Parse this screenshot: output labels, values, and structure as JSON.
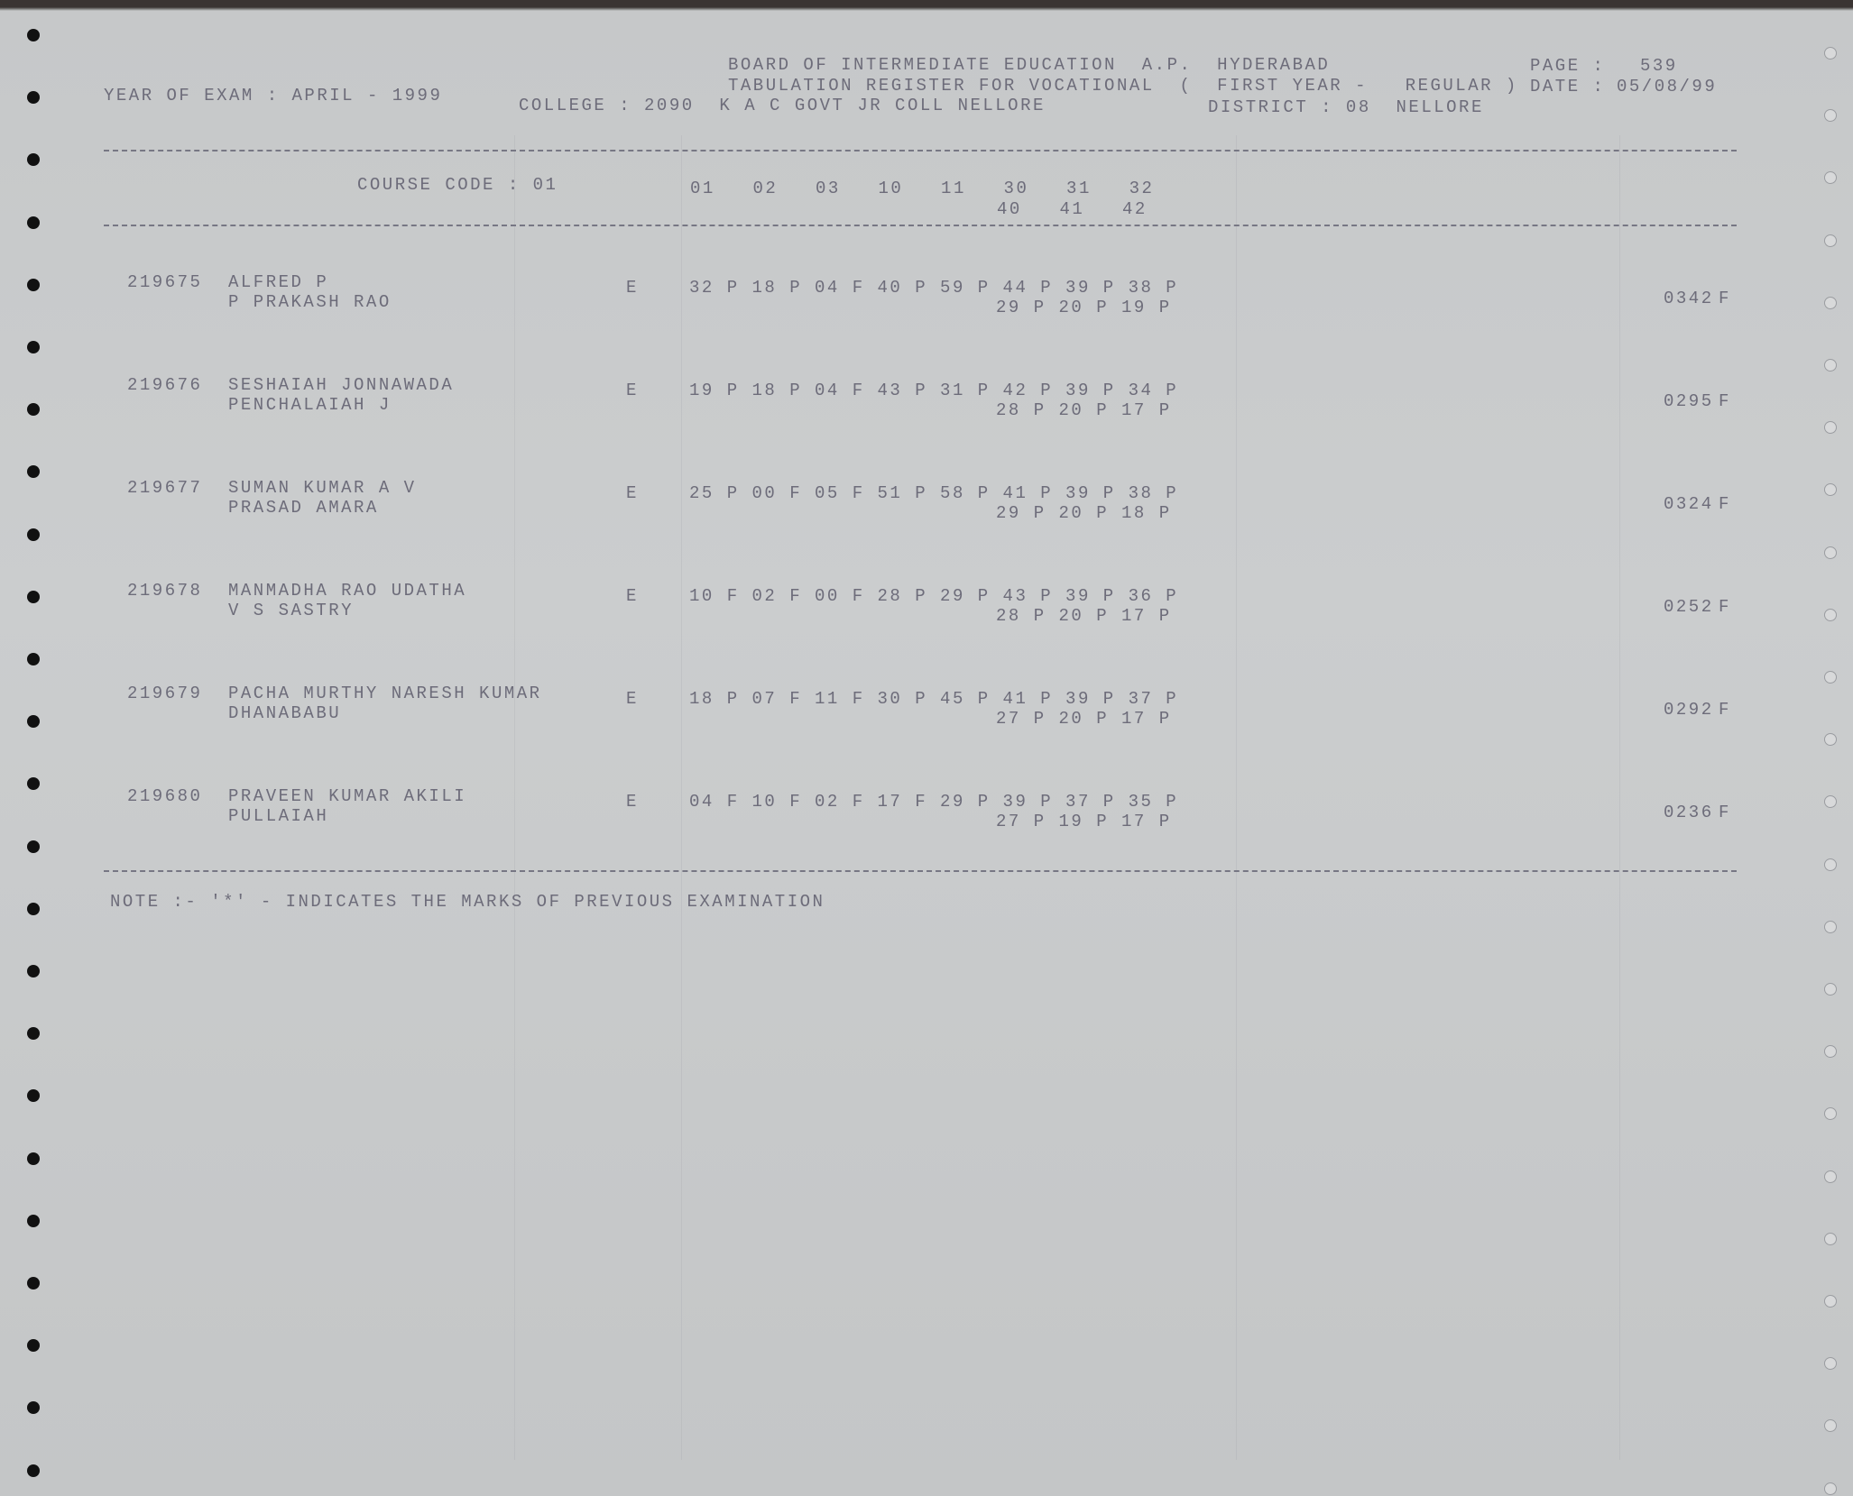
{
  "header": {
    "board": "BOARD OF INTERMEDIATE EDUCATION  A.P.  HYDERABAD",
    "register": "TABULATION REGISTER FOR VOCATIONAL  (  FIRST YEAR -   REGULAR )",
    "page_label": "PAGE :",
    "page_number": "539",
    "date_label": "DATE :",
    "date": "05/08/99",
    "year_of_exam": "YEAR OF EXAM : APRIL - 1999",
    "college": "COLLEGE : 2090  K A C GOVT JR COLL NELLORE",
    "district": "DISTRICT : 08  NELLORE"
  },
  "columns": {
    "course_code": "COURSE CODE : 01",
    "subjects_line1": "01   02   03   10   11   30   31   32",
    "subjects_line2": "40   41   42"
  },
  "students": [
    {
      "roll": "219675",
      "name1": "ALFRED P",
      "name2": "P PRAKASH RAO",
      "medium": "E",
      "marks1": "32 P 18 P 04 F 40 P 59 P 44 P 39 P 38 P",
      "marks2": "29 P 20 P 19 P",
      "total": "0342",
      "result": "F"
    },
    {
      "roll": "219676",
      "name1": "SESHAIAH JONNAWADA",
      "name2": "PENCHALAIAH J",
      "medium": "E",
      "marks1": "19 P 18 P 04 F 43 P 31 P 42 P 39 P 34 P",
      "marks2": "28 P 20 P 17 P",
      "total": "0295",
      "result": "F"
    },
    {
      "roll": "219677",
      "name1": "SUMAN KUMAR A V",
      "name2": "PRASAD AMARA",
      "medium": "E",
      "marks1": "25 P 00 F 05 F 51 P 58 P 41 P 39 P 38 P",
      "marks2": "29 P 20 P 18 P",
      "total": "0324",
      "result": "F"
    },
    {
      "roll": "219678",
      "name1": "MANMADHA RAO UDATHA",
      "name2": "V S SASTRY",
      "medium": "E",
      "marks1": "10 F 02 F 00 F 28 P 29 P 43 P 39 P 36 P",
      "marks2": "28 P 20 P 17 P",
      "total": "0252",
      "result": "F"
    },
    {
      "roll": "219679",
      "name1": "PACHA MURTHY NARESH KUMAR",
      "name2": "DHANABABU",
      "medium": "E",
      "marks1": "18 P 07 F 11 F 30 P 45 P 41 P 39 P 37 P",
      "marks2": "27 P 20 P 17 P",
      "total": "0292",
      "result": "F"
    },
    {
      "roll": "219680",
      "name1": "PRAVEEN KUMAR AKILI",
      "name2": "PULLAIAH",
      "medium": "E",
      "marks1": "04 F 10 F 02 F 17 F 29 P 39 P 37 P 35 P",
      "marks2": "27 P 19 P 17 P",
      "total": "0236",
      "result": "F"
    }
  ],
  "note": "NOTE :- '*' - INDICATES THE MARKS OF PREVIOUS EXAMINATION"
}
